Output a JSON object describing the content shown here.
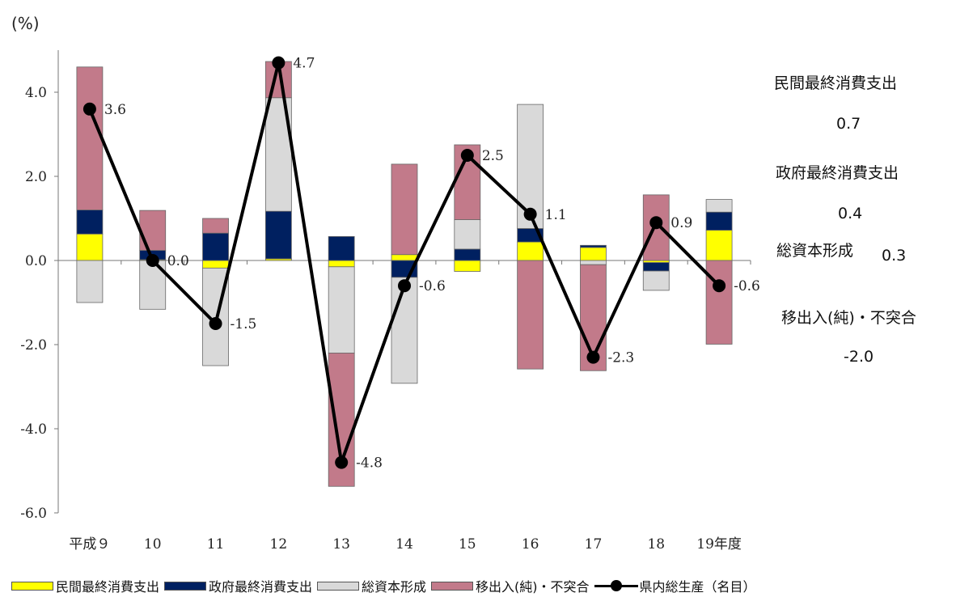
{
  "chart_data": {
    "type": "bar",
    "stacked": true,
    "unit_label": "(%)",
    "categories": [
      "平成９",
      "10",
      "11",
      "12",
      "13",
      "14",
      "15",
      "16",
      "17",
      "18",
      "19年度"
    ],
    "ylim": [
      -6.0,
      5.0
    ],
    "yticks": [
      "4.0",
      "2.0",
      "0.0",
      "-2.0",
      "-4.0",
      "-6.0"
    ],
    "ytick_values": [
      4,
      2,
      0,
      -2,
      -4,
      -6
    ],
    "series": [
      {
        "name": "民間最終消費支出",
        "color": "#ffff00",
        "values": [
          0.63,
          0.02,
          -0.18,
          0.04,
          -0.15,
          0.14,
          -0.26,
          0.44,
          0.31,
          -0.05,
          0.72
        ]
      },
      {
        "name": "政府最終消費支出",
        "color": "#002060",
        "values": [
          0.57,
          0.22,
          0.65,
          1.13,
          0.57,
          -0.4,
          0.27,
          0.32,
          0.05,
          -0.2,
          0.43
        ]
      },
      {
        "name": "総資本形成",
        "color": "#d9d9d9",
        "values": [
          -1.0,
          -1.16,
          -2.32,
          2.7,
          -2.05,
          -2.52,
          0.7,
          2.95,
          -0.1,
          -0.46,
          0.3
        ]
      },
      {
        "name": "移出入(純)・不突合",
        "color": "#c27a8a",
        "values": [
          3.4,
          0.95,
          0.35,
          0.86,
          -3.17,
          2.15,
          1.78,
          -2.58,
          -2.52,
          1.56,
          -1.99
        ]
      }
    ],
    "line": {
      "name": "県内総生産（名目）",
      "color": "#000000",
      "values": [
        3.6,
        0.0,
        -1.5,
        4.7,
        -4.8,
        -0.6,
        2.5,
        1.1,
        -2.3,
        0.9,
        -0.6
      ],
      "labels": [
        "3.6",
        "0.0",
        "-1.5",
        "4.7",
        "-4.8",
        "-0.6",
        "2.5",
        "1.1",
        "-2.3",
        "0.9",
        "-0.6"
      ]
    },
    "annotations": [
      {
        "title": "民間最終消費支出",
        "value": "0.7"
      },
      {
        "title": "政府最終消費支出",
        "value": "0.4"
      },
      {
        "title": "総資本形成",
        "value": "0.3"
      },
      {
        "title": "移出入(純)・不突合",
        "value": "-2.0"
      }
    ],
    "legend_position": "bottom"
  }
}
